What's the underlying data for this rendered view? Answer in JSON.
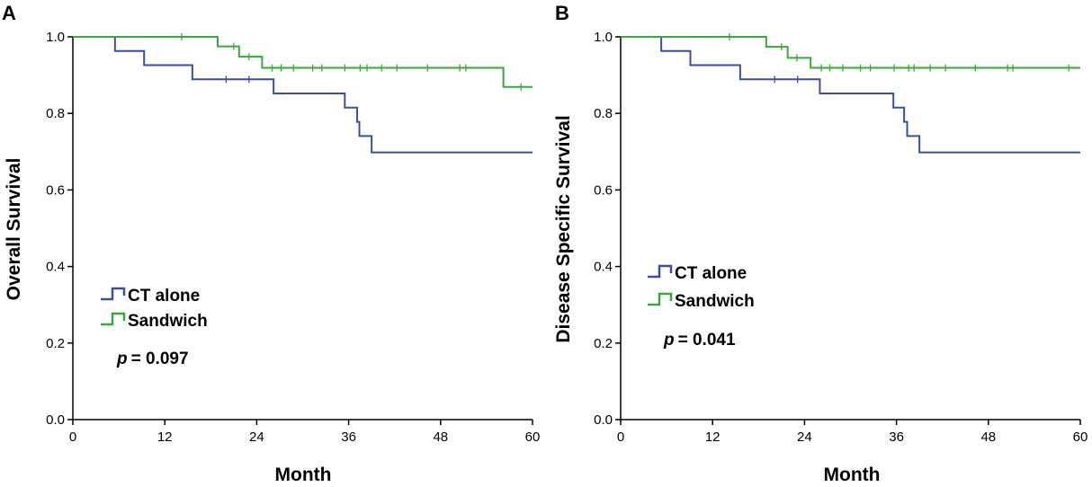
{
  "chart_data": [
    {
      "type": "line",
      "panel_label": "A",
      "xlabel": "Month",
      "ylabel": "Overall Survival",
      "xlim": [
        0,
        60
      ],
      "ylim": [
        0,
        1.0
      ],
      "xticks": [
        0,
        12,
        24,
        36,
        48,
        60
      ],
      "yticks": [
        0.0,
        0.2,
        0.4,
        0.6,
        0.8,
        1.0
      ],
      "xtick_labels": [
        "0",
        "12",
        "24",
        "36",
        "48",
        "60"
      ],
      "ytick_labels": [
        "0.0",
        "0.2",
        "0.4",
        "0.6",
        "0.8",
        "1.0"
      ],
      "grid": false,
      "legend_position": "lower-left",
      "pvalue_prefix": "p",
      "pvalue_text": "= 0.097",
      "series": [
        {
          "name": "CT alone",
          "color": "#3a4fa3",
          "steps": [
            [
              0,
              1.0
            ],
            [
              5.5,
              0.963
            ],
            [
              9.3,
              0.926
            ],
            [
              15.6,
              0.889
            ],
            [
              26.2,
              0.852
            ],
            [
              35.5,
              0.815
            ],
            [
              37.1,
              0.778
            ],
            [
              37.4,
              0.741
            ],
            [
              39.0,
              0.698
            ],
            [
              60,
              0.698
            ]
          ],
          "censors": [
            [
              20.0,
              0.889
            ],
            [
              23.0,
              0.889
            ]
          ]
        },
        {
          "name": "Sandwich",
          "color": "#3aa83a",
          "steps": [
            [
              0,
              1.0
            ],
            [
              18.9,
              0.975
            ],
            [
              21.7,
              0.948
            ],
            [
              24.7,
              0.919
            ],
            [
              56.2,
              0.869
            ],
            [
              60,
              0.869
            ]
          ],
          "censors": [
            [
              14.2,
              1.0
            ],
            [
              21.0,
              0.975
            ],
            [
              23.0,
              0.948
            ],
            [
              26.0,
              0.919
            ],
            [
              27.2,
              0.919
            ],
            [
              28.8,
              0.919
            ],
            [
              31.3,
              0.919
            ],
            [
              32.5,
              0.919
            ],
            [
              35.5,
              0.919
            ],
            [
              37.5,
              0.919
            ],
            [
              38.4,
              0.919
            ],
            [
              40.3,
              0.919
            ],
            [
              42.3,
              0.919
            ],
            [
              46.3,
              0.919
            ],
            [
              50.5,
              0.919
            ],
            [
              51.3,
              0.919
            ],
            [
              58.5,
              0.869
            ]
          ]
        }
      ]
    },
    {
      "type": "line",
      "panel_label": "B",
      "xlabel": "Month",
      "ylabel": "Disease Specific Survival",
      "xlim": [
        0,
        60
      ],
      "ylim": [
        0,
        1.0
      ],
      "xticks": [
        0,
        12,
        24,
        36,
        48,
        60
      ],
      "yticks": [
        0.0,
        0.2,
        0.4,
        0.6,
        0.8,
        1.0
      ],
      "xtick_labels": [
        "0",
        "12",
        "24",
        "36",
        "48",
        "60"
      ],
      "ytick_labels": [
        "0.0",
        "0.2",
        "0.4",
        "0.6",
        "0.8",
        "1.0"
      ],
      "grid": false,
      "legend_position": "lower-left",
      "pvalue_prefix": "p",
      "pvalue_text": "= 0.041",
      "series": [
        {
          "name": "CT alone",
          "color": "#3a4fa3",
          "steps": [
            [
              0,
              1.0
            ],
            [
              5.3,
              0.963
            ],
            [
              9.1,
              0.926
            ],
            [
              15.6,
              0.889
            ],
            [
              26.0,
              0.852
            ],
            [
              35.6,
              0.815
            ],
            [
              37.0,
              0.778
            ],
            [
              37.4,
              0.741
            ],
            [
              39.0,
              0.698
            ],
            [
              60,
              0.698
            ]
          ],
          "censors": [
            [
              20.1,
              0.889
            ],
            [
              23.1,
              0.889
            ]
          ]
        },
        {
          "name": "Sandwich",
          "color": "#3aa83a",
          "steps": [
            [
              0,
              1.0
            ],
            [
              19.0,
              0.974
            ],
            [
              21.8,
              0.945
            ],
            [
              24.8,
              0.919
            ],
            [
              60,
              0.919
            ]
          ],
          "censors": [
            [
              14.2,
              1.0
            ],
            [
              21.0,
              0.974
            ],
            [
              23.0,
              0.945
            ],
            [
              26.2,
              0.919
            ],
            [
              27.3,
              0.919
            ],
            [
              29.0,
              0.919
            ],
            [
              31.3,
              0.919
            ],
            [
              32.6,
              0.919
            ],
            [
              35.7,
              0.919
            ],
            [
              37.6,
              0.919
            ],
            [
              38.3,
              0.919
            ],
            [
              40.4,
              0.919
            ],
            [
              42.4,
              0.919
            ],
            [
              46.3,
              0.919
            ],
            [
              50.5,
              0.919
            ],
            [
              51.2,
              0.919
            ],
            [
              58.5,
              0.919
            ]
          ]
        }
      ]
    }
  ]
}
